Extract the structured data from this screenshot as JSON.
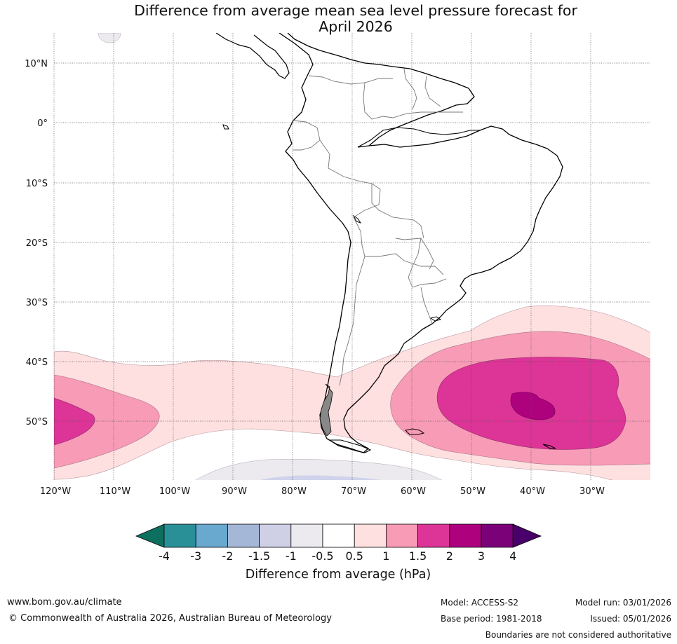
{
  "title": {
    "line1": "Difference from average mean sea level pressure forecast for",
    "line2": "April 2026"
  },
  "map": {
    "lat_labels": [
      "10°N",
      "0°",
      "10°S",
      "20°S",
      "30°S",
      "40°S",
      "50°S"
    ],
    "lon_labels": [
      "120°W",
      "110°W",
      "100°W",
      "90°W",
      "80°W",
      "70°W",
      "60°W",
      "50°W",
      "40°W",
      "30°W"
    ],
    "extent": {
      "lon_min": -120,
      "lon_max": -20,
      "lat_min": -60,
      "lat_max": 15
    }
  },
  "colorbar": {
    "ticks": [
      "-4",
      "-3",
      "-2",
      "-1.5",
      "-1",
      "-0.5",
      "0.5",
      "1",
      "1.5",
      "2",
      "3",
      "4"
    ],
    "colors": [
      "#0d6f5f",
      "#2a9098",
      "#69a8cf",
      "#a4b7d6",
      "#cfd0e6",
      "#eceaee",
      "#ffffff",
      "#fde0df",
      "#f89bb6",
      "#dd3497",
      "#ae017e",
      "#7a0177",
      "#49006a"
    ],
    "title": "Difference from average (hPa)"
  },
  "footer": {
    "url": "www.bom.gov.au/climate",
    "copyright": "© Commonwealth of Australia 2026, Australian Bureau of Meteorology",
    "model": "Model: ACCESS-S2",
    "base_period": "Base period: 1981-2018",
    "model_run": "Model run: 03/01/2026",
    "issued": "Issued: 05/01/2026",
    "disclaimer": "Boundaries are not considered authoritative"
  }
}
